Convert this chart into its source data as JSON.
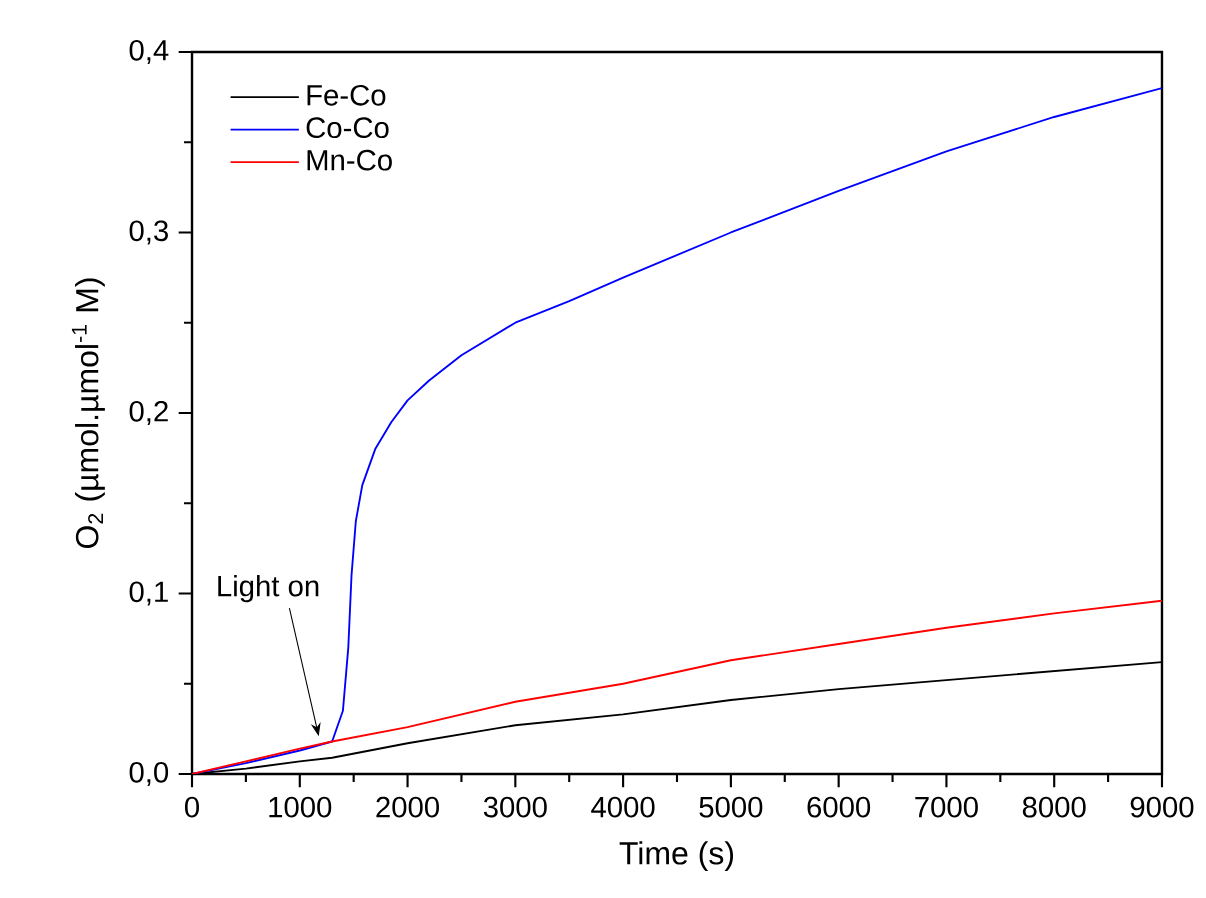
{
  "chart_data": {
    "type": "line",
    "xlabel": "Time (s)",
    "ylabel": "O$_{2}$ (µmol.µmol$^{-1}$ M)",
    "xlim": [
      0,
      9000
    ],
    "ylim": [
      0,
      0.4
    ],
    "xticks": [
      0,
      1000,
      2000,
      3000,
      4000,
      5000,
      6000,
      7000,
      8000,
      9000
    ],
    "yticks": [
      {
        "value": 0,
        "label": "0,0"
      },
      {
        "value": 0.1,
        "label": "0,1"
      },
      {
        "value": 0.2,
        "label": "0,2"
      },
      {
        "value": 0.3,
        "label": "0,3"
      },
      {
        "value": 0.4,
        "label": "0,4"
      }
    ],
    "legend": "top left",
    "grid": false,
    "marker": "none",
    "line_style": "solid",
    "annotations": [
      {
        "text": "Light on",
        "x": 1250,
        "y": 0.018
      }
    ],
    "series": [
      {
        "name": "Fe-Co",
        "color": "#000000",
        "x": [
          0,
          500,
          1000,
          1300,
          2000,
          3000,
          4000,
          5000,
          6000,
          7000,
          8000,
          9000
        ],
        "values": [
          0,
          0.003,
          0.007,
          0.009,
          0.017,
          0.027,
          0.033,
          0.041,
          0.047,
          0.052,
          0.057,
          0.062
        ]
      },
      {
        "name": "Co-Co",
        "color": "#0000ff",
        "x": [
          0,
          500,
          1000,
          1300,
          1400,
          1450,
          1480,
          1520,
          1580,
          1700,
          1850,
          2000,
          2200,
          2500,
          3000,
          3500,
          4000,
          5000,
          6000,
          7000,
          8000,
          9000
        ],
        "values": [
          0,
          0.006,
          0.013,
          0.018,
          0.035,
          0.07,
          0.11,
          0.14,
          0.16,
          0.18,
          0.195,
          0.207,
          0.218,
          0.232,
          0.25,
          0.262,
          0.275,
          0.3,
          0.323,
          0.345,
          0.364,
          0.38
        ]
      },
      {
        "name": "Mn-Co",
        "color": "#ff0000",
        "x": [
          0,
          500,
          1000,
          1300,
          2000,
          3000,
          4000,
          5000,
          6000,
          7000,
          8000,
          9000
        ],
        "values": [
          0,
          0.007,
          0.014,
          0.018,
          0.026,
          0.04,
          0.05,
          0.063,
          0.072,
          0.081,
          0.089,
          0.096
        ]
      }
    ]
  }
}
